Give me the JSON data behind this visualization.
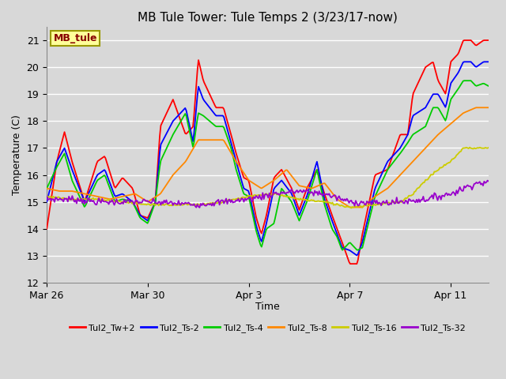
{
  "title": "MB Tule Tower: Tule Temps 2 (3/23/17-now)",
  "xlabel": "Time",
  "ylabel": "Temperature (C)",
  "ylim": [
    12.0,
    21.5
  ],
  "yticks": [
    12.0,
    13.0,
    14.0,
    15.0,
    16.0,
    17.0,
    18.0,
    19.0,
    20.0,
    21.0
  ],
  "bg_color": "#d8d8d8",
  "grid_color": "#ffffff",
  "series": [
    {
      "name": "Tul2_Tw+2",
      "color": "#ff0000"
    },
    {
      "name": "Tul2_Ts-2",
      "color": "#0000ff"
    },
    {
      "name": "Tul2_Ts-4",
      "color": "#00cc00"
    },
    {
      "name": "Tul2_Ts-8",
      "color": "#ff8800"
    },
    {
      "name": "Tul2_Ts-16",
      "color": "#cccc00"
    },
    {
      "name": "Tul2_Ts-32",
      "color": "#9900cc"
    }
  ],
  "xtick_labels": [
    "Mar 26",
    "Mar 30",
    "Apr 3",
    "Apr 7",
    "Apr 11"
  ],
  "xtick_positions": [
    0,
    4,
    8,
    12,
    16
  ],
  "xlim": [
    0,
    17.5
  ],
  "label_box": "MB_tule",
  "label_box_facecolor": "#ffff99",
  "label_box_edgecolor": "#999900",
  "label_box_textcolor": "#880000",
  "title_fontsize": 11,
  "axis_fontsize": 9,
  "tick_fontsize": 9,
  "legend_fontsize": 8,
  "line_width": 1.3,
  "figwidth": 6.4,
  "figheight": 4.8,
  "dpi": 100
}
